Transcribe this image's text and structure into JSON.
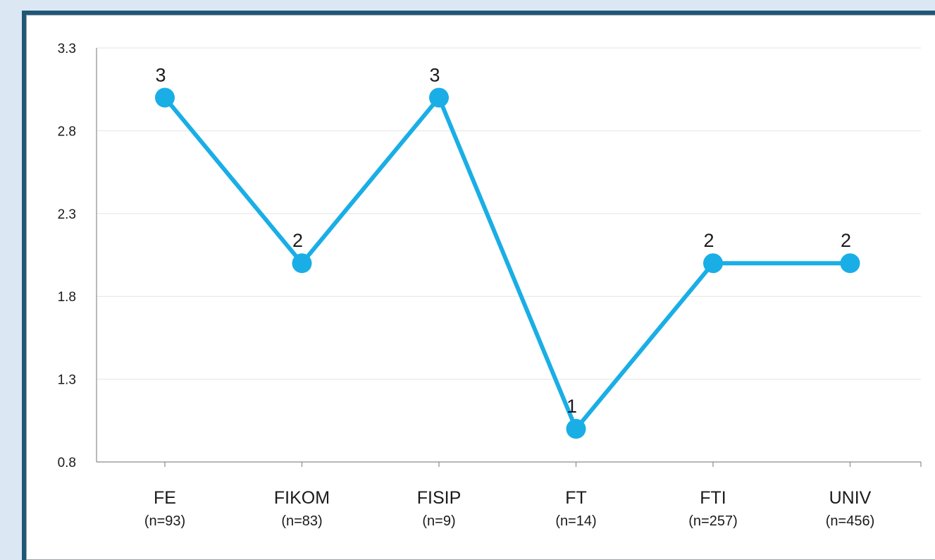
{
  "chart_data": {
    "type": "line",
    "title": "",
    "xlabel": "",
    "ylabel": "",
    "ylim": [
      0.8,
      3.3
    ],
    "yticks": [
      "0.8",
      "1.3",
      "1.8",
      "2.3",
      "2.8",
      "3.3"
    ],
    "grid": true,
    "legend": "none",
    "categories": [
      {
        "label": "FE",
        "sublabel": "(n=93)"
      },
      {
        "label": "FIKOM",
        "sublabel": "(n=83)"
      },
      {
        "label": "FISIP",
        "sublabel": "(n=9)"
      },
      {
        "label": "FT",
        "sublabel": "(n=14)"
      },
      {
        "label": "FTI",
        "sublabel": "(n=257)"
      },
      {
        "label": "UNIV",
        "sublabel": "(n=456)"
      }
    ],
    "series": [
      {
        "values": [
          3,
          2,
          3,
          1,
          2,
          2
        ],
        "data_labels": [
          "3",
          "2",
          "3",
          "1",
          "2",
          "2"
        ],
        "color": "#1aaee6"
      }
    ]
  }
}
